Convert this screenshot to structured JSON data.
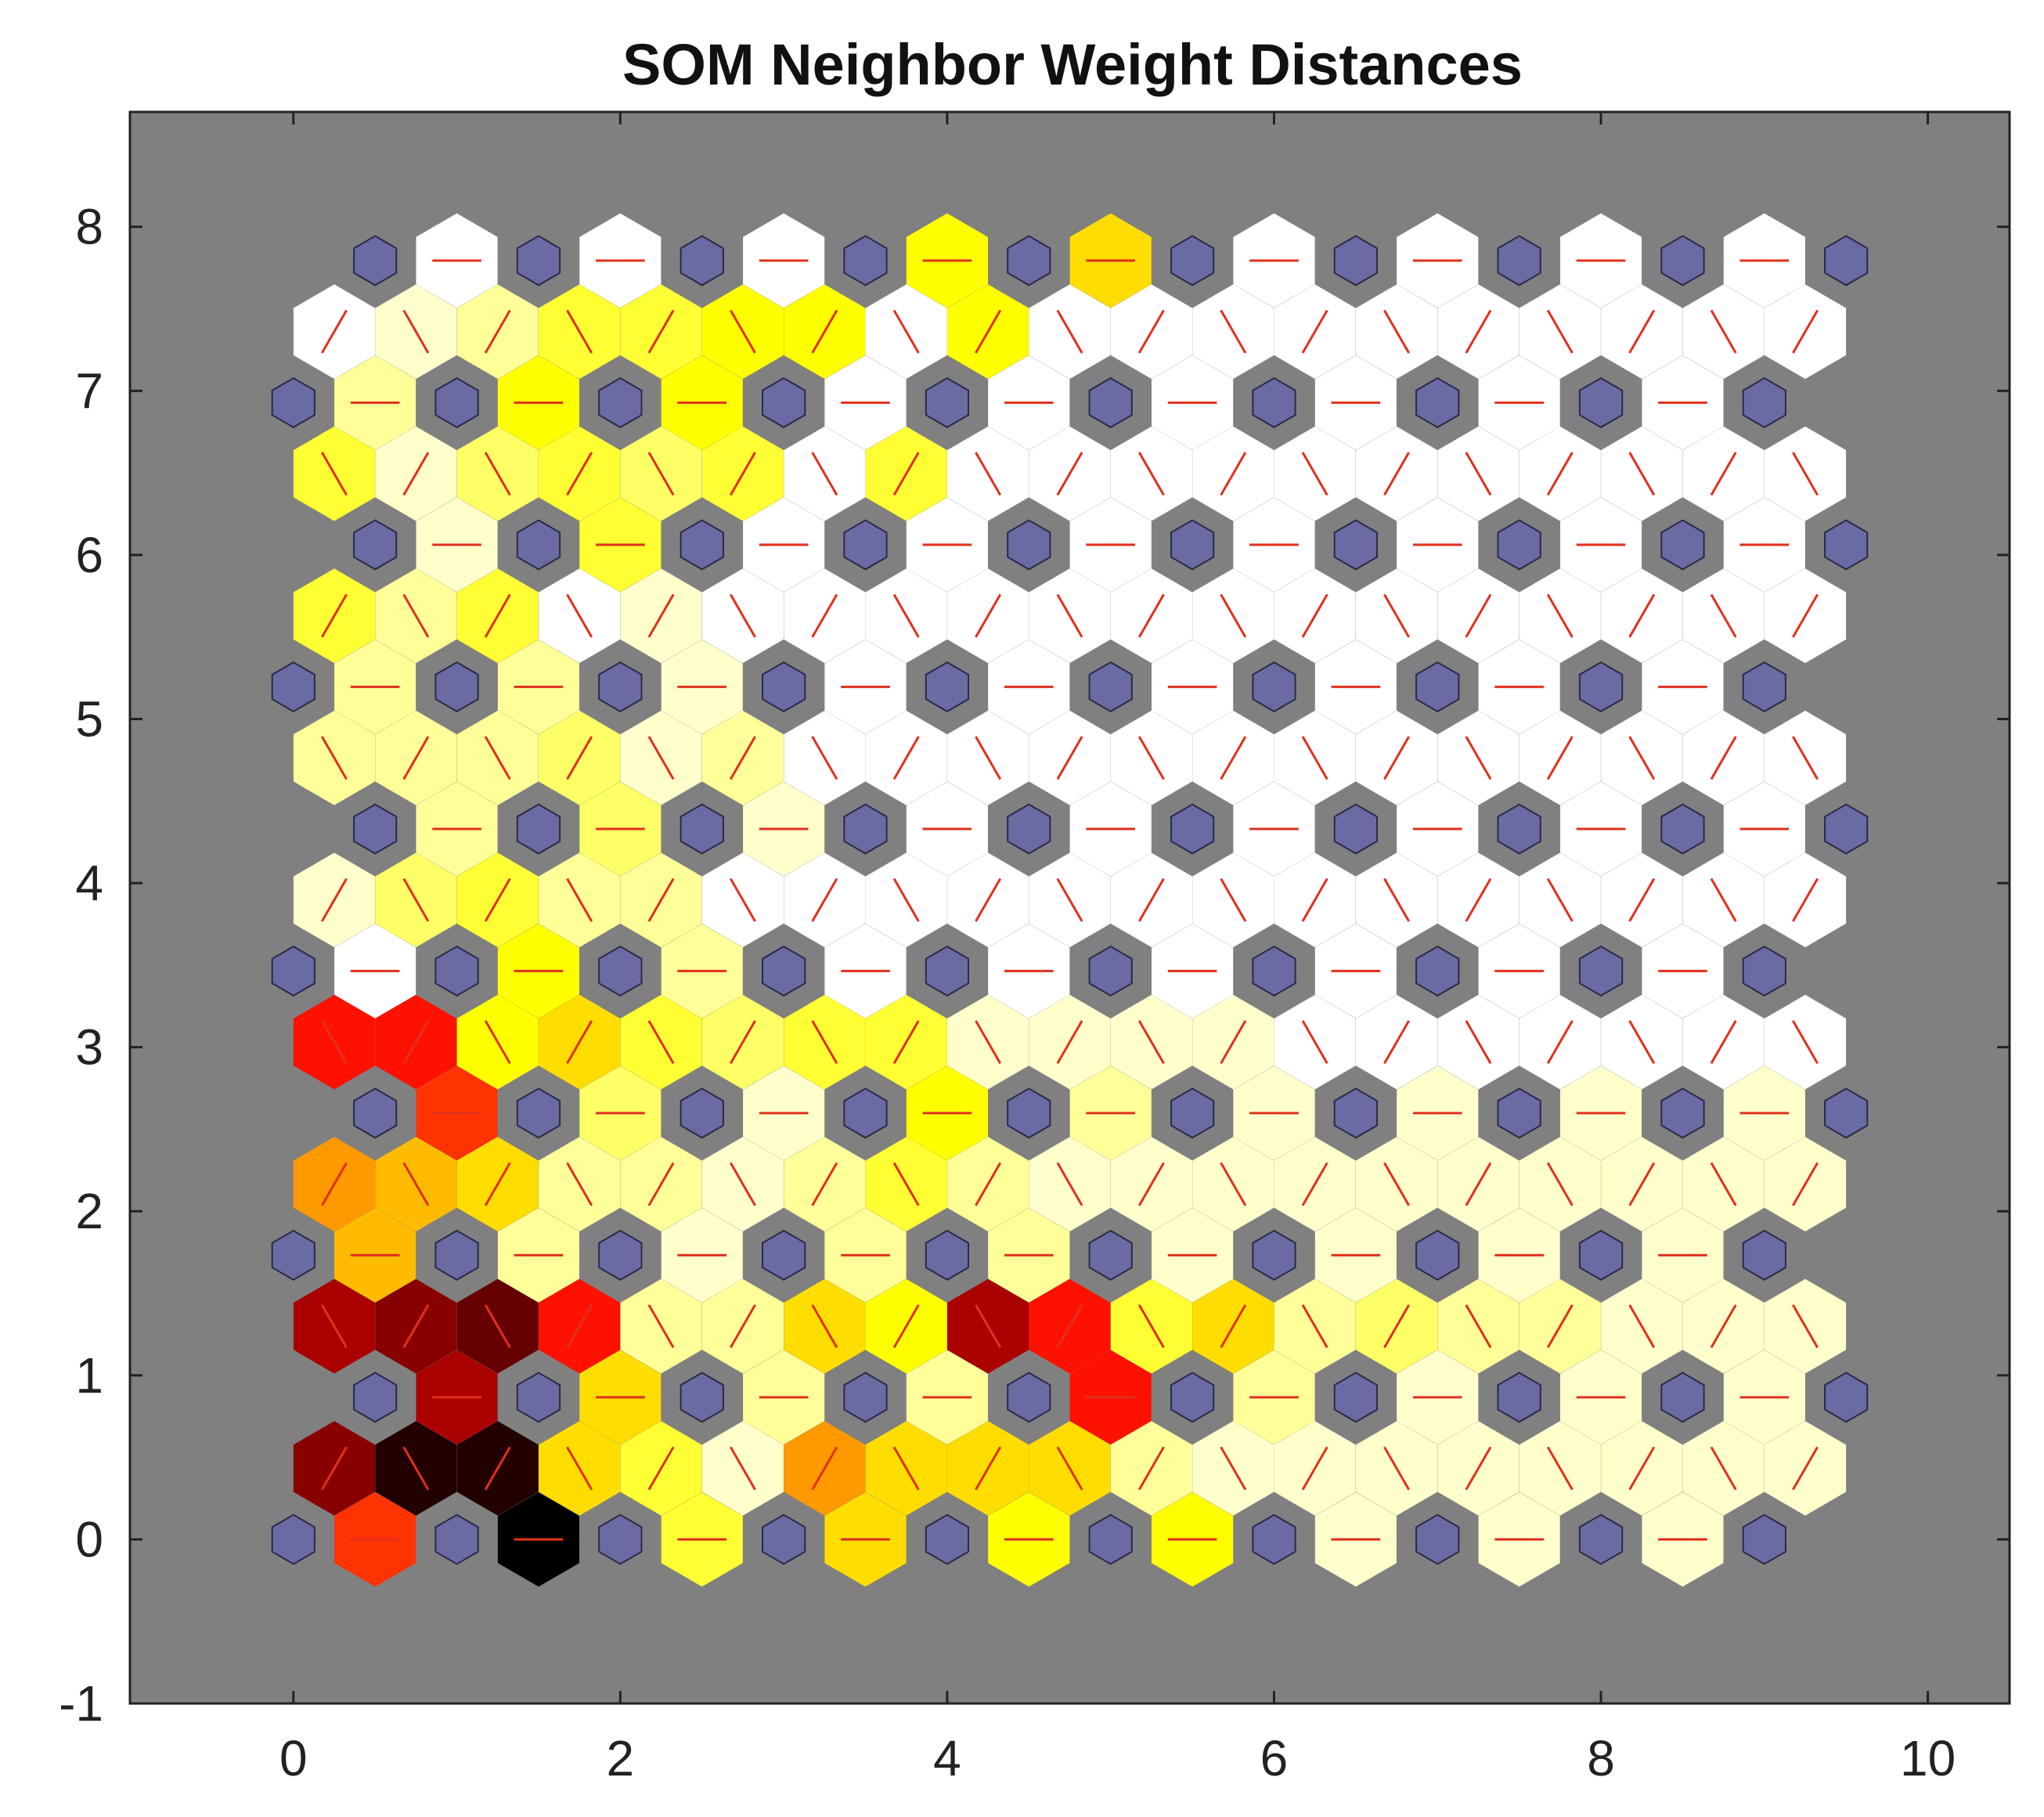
{
  "chart_data": {
    "type": "heatmap",
    "title": "SOM Neighbor Weight Distances",
    "xlabel": "",
    "ylabel": "",
    "xlim": [
      -1.0,
      10.5
    ],
    "ylim": [
      -1,
      8.7
    ],
    "x_ticks": [
      0,
      2,
      4,
      6,
      8,
      10
    ],
    "y_ticks": [
      -1,
      0,
      1,
      2,
      3,
      4,
      5,
      6,
      7,
      8
    ],
    "x_tick_labels": [
      "0",
      "2",
      "4",
      "6",
      "8",
      "10"
    ],
    "y_tick_labels": [
      "-1",
      "0",
      "1",
      "2",
      "3",
      "4",
      "5",
      "6",
      "7",
      "8"
    ],
    "grid": false,
    "grid_layout": "hexagonal",
    "grid_size": [
      10,
      10
    ],
    "colormap": "hot",
    "colors": {
      "background": "#808080",
      "neuron": "#6b6ba3",
      "neuron_edge": "#2a2a4a",
      "connection_line": "#e0301e",
      "axis": "#222222"
    },
    "neuron_row_offsets": [
      0,
      0.5,
      0,
      0.5,
      0,
      0.5,
      0,
      0.5,
      0,
      0.5
    ],
    "neuron_row_y": [
      0,
      0.866,
      1.732,
      2.598,
      3.464,
      4.33,
      5.196,
      6.062,
      6.928,
      7.794
    ],
    "neuron_cols_x": [
      0,
      1,
      2,
      3,
      4,
      5,
      6,
      7,
      8,
      9
    ],
    "distances": {
      "horizontal": [
        [
          0.55,
          1.0,
          0.2,
          0.3,
          0.25,
          0.25,
          0.05,
          0.05,
          0.05
        ],
        [
          0.75,
          0.3,
          0.1,
          0.1,
          0.6,
          0.1,
          0.05,
          0.05,
          0.05
        ],
        [
          0.35,
          0.1,
          0.05,
          0.1,
          0.1,
          0.05,
          0.05,
          0.05,
          0.05
        ],
        [
          0.55,
          0.15,
          0.05,
          0.25,
          0.1,
          0.05,
          0.05,
          0.05,
          0.05
        ],
        [
          0.0,
          0.25,
          0.1,
          0.0,
          0.0,
          0.0,
          0.0,
          0.0,
          0.0
        ],
        [
          0.1,
          0.15,
          0.05,
          0.0,
          0.0,
          0.0,
          0.0,
          0.0,
          0.0
        ],
        [
          0.1,
          0.1,
          0.05,
          0.0,
          0.0,
          0.0,
          0.0,
          0.0,
          0.0
        ],
        [
          0.05,
          0.2,
          0.0,
          0.0,
          0.0,
          0.0,
          0.0,
          0.0,
          0.0
        ],
        [
          0.1,
          0.25,
          0.25,
          0.0,
          0.0,
          0.0,
          0.0,
          0.0,
          0.0
        ],
        [
          0.0,
          0.0,
          0.0,
          0.25,
          0.3,
          0.0,
          0.0,
          0.0,
          0.0
        ]
      ],
      "diagonal_left": [
        [
          0.8,
          0.95,
          0.3,
          0.05,
          0.3,
          0.3,
          0.05,
          0.05,
          0.05,
          0.05
        ],
        [
          0.75,
          0.85,
          0.1,
          0.3,
          0.75,
          0.2,
          0.1,
          0.1,
          0.05,
          0.05
        ],
        [
          0.1,
          0.35,
          0.1,
          0.05,
          0.2,
          0.05,
          0.05,
          0.05,
          0.05,
          0.05
        ],
        [
          0.6,
          0.25,
          0.2,
          0.2,
          0.05,
          0.05,
          0.0,
          0.0,
          0.0,
          0.0
        ],
        [
          0.05,
          0.15,
          0.1,
          0.0,
          0.0,
          0.0,
          0.0,
          0.0,
          0.0,
          0.0
        ],
        [
          0.1,
          0.1,
          0.05,
          0.0,
          0.0,
          0.0,
          0.0,
          0.0,
          0.0,
          0.0
        ],
        [
          0.1,
          0.1,
          0.0,
          0.0,
          0.0,
          0.0,
          0.0,
          0.0,
          0.0,
          0.0
        ],
        [
          0.2,
          0.15,
          0.15,
          0.0,
          0.0,
          0.0,
          0.0,
          0.0,
          0.0,
          0.0
        ],
        [
          0.0,
          0.05,
          0.2,
          0.25,
          0.0,
          0.0,
          0.0,
          0.0,
          0.0,
          0.0
        ]
      ],
      "diagonal_right": [
        [
          0.8,
          0.95,
          0.2,
          0.4,
          0.3,
          0.1,
          0.05,
          0.05,
          0.05,
          0.05
        ],
        [
          0.8,
          0.6,
          0.1,
          0.25,
          0.6,
          0.3,
          0.15,
          0.1,
          0.05,
          0.05
        ],
        [
          0.4,
          0.3,
          0.1,
          0.1,
          0.1,
          0.05,
          0.05,
          0.05,
          0.05,
          0.05
        ],
        [
          0.6,
          0.3,
          0.15,
          0.2,
          0.05,
          0.05,
          0.0,
          0.0,
          0.0,
          0.0
        ],
        [
          0.05,
          0.2,
          0.1,
          0.0,
          0.0,
          0.0,
          0.0,
          0.0,
          0.0,
          0.0
        ],
        [
          0.1,
          0.15,
          0.1,
          0.0,
          0.0,
          0.0,
          0.0,
          0.0,
          0.0,
          0.0
        ],
        [
          0.2,
          0.2,
          0.05,
          0.0,
          0.0,
          0.0,
          0.0,
          0.0,
          0.0,
          0.0
        ],
        [
          0.05,
          0.2,
          0.2,
          0.2,
          0.0,
          0.0,
          0.0,
          0.0,
          0.0,
          0.0
        ],
        [
          0.0,
          0.1,
          0.2,
          0.25,
          0.25,
          0.0,
          0.0,
          0.0,
          0.0,
          0.0
        ]
      ]
    }
  }
}
